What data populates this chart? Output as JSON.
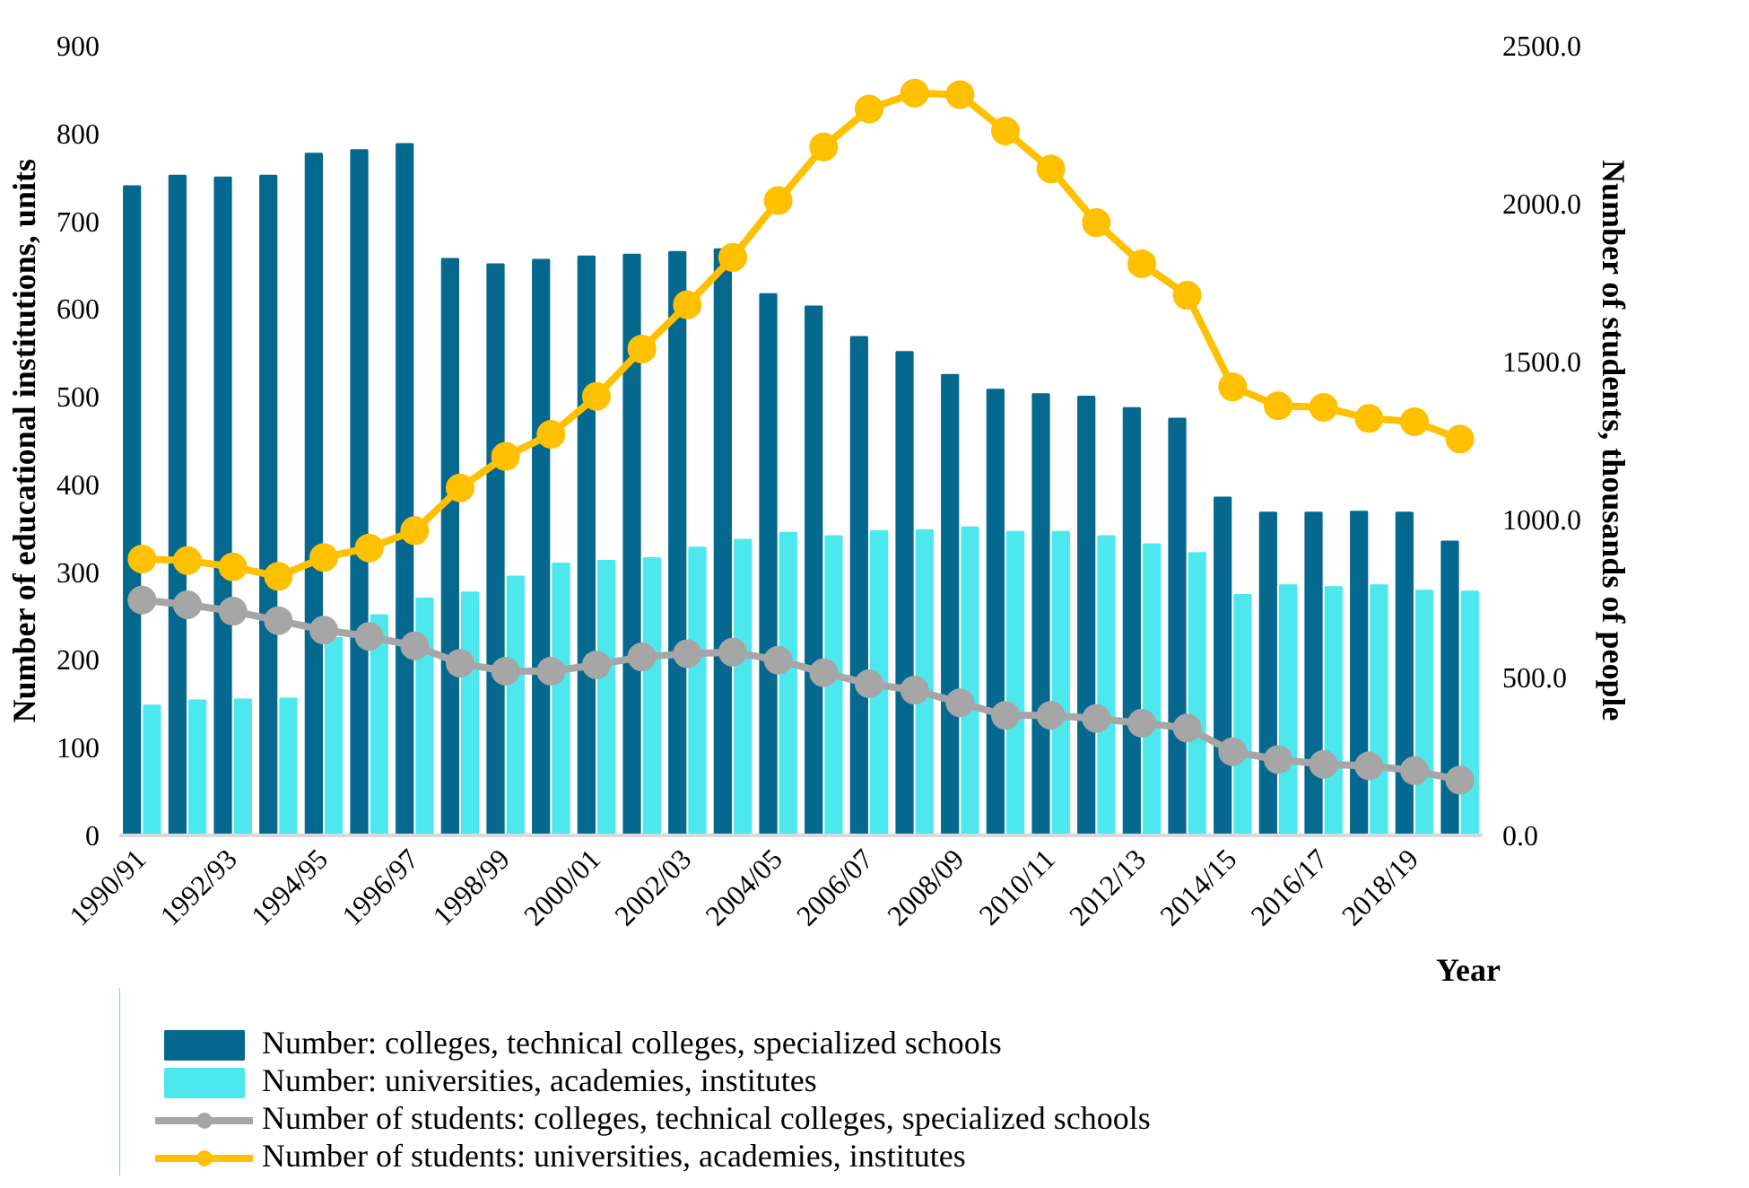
{
  "chart_data": {
    "type": "bar",
    "ylabel": "Number of educational institutions, units",
    "y2label": "Number of students, thousands of people",
    "xlabel": "Year",
    "categories": [
      "1990/91",
      null,
      "1992/93",
      null,
      "1994/95",
      null,
      "1996/97",
      null,
      "1998/99",
      null,
      "2000/01",
      null,
      "2002/03",
      null,
      "2004/05",
      null,
      "2006/07",
      null,
      "2008/09",
      null,
      "2010/11",
      null,
      "2012/13",
      null,
      "2014/15",
      null,
      "2016/17",
      null,
      "2018/19",
      null
    ],
    "series": [
      {
        "name": "Number: colleges, technical colleges, specialized schools",
        "color": "#05698f",
        "values": [
          740,
          752,
          750,
          752,
          777,
          781,
          788,
          657,
          651,
          656,
          660,
          662,
          665,
          668,
          617,
          603,
          568,
          551,
          525,
          508,
          503,
          500,
          487,
          475,
          385,
          368,
          368,
          369,
          368,
          335
        ]
      },
      {
        "name": "Number: universities, academies, institutes",
        "color": "#4de8ee",
        "values": [
          148,
          154,
          155,
          156,
          225,
          251,
          270,
          277,
          295,
          310,
          313,
          316,
          328,
          337,
          345,
          341,
          347,
          348,
          351,
          346,
          346,
          341,
          332,
          322,
          274,
          285,
          283,
          285,
          279,
          278
        ]
      },
      {
        "name": "Number of students: colleges, technical colleges, specialized schools",
        "type": "line",
        "axis": "y2",
        "color": "#a6a6a6",
        "values": [
          745,
          730,
          710,
          680,
          650,
          630,
          600,
          545,
          520,
          520,
          540,
          565,
          575,
          580,
          555,
          515,
          480,
          460,
          420,
          380,
          380,
          370,
          355,
          340,
          265,
          240,
          225,
          220,
          205,
          175
        ]
      },
      {
        "name": "Number of students: universities, academies, institutes",
        "type": "line",
        "axis": "y2",
        "color": "#ffc000",
        "values": [
          875,
          870,
          850,
          820,
          880,
          910,
          965,
          1100,
          1200,
          1270,
          1390,
          1540,
          1680,
          1830,
          2010,
          2180,
          2300,
          2350,
          2345,
          2230,
          2110,
          1940,
          1810,
          1710,
          1420,
          1360,
          1355,
          1320,
          1310,
          1255
        ]
      }
    ],
    "ylim": [
      0,
      900
    ],
    "yticks": [
      0,
      100,
      200,
      300,
      400,
      500,
      600,
      700,
      800,
      900
    ],
    "y2lim": [
      0,
      2500
    ],
    "y2ticks": [
      {
        "value": 0,
        "label": "0.0"
      },
      {
        "value": 500,
        "label": "500.0"
      },
      {
        "value": 1000,
        "label": "1000.0"
      },
      {
        "value": 1500,
        "label": "1500.0"
      },
      {
        "value": 2000,
        "label": "2000.0"
      },
      {
        "value": 2500,
        "label": "2500.0"
      }
    ],
    "grid": false,
    "legend": "bottom",
    "marker": "circle",
    "line_style": "solid"
  }
}
